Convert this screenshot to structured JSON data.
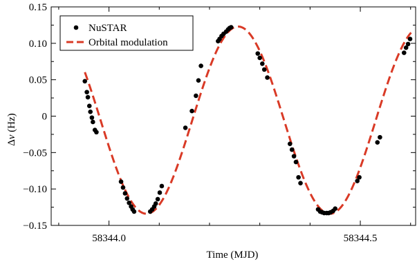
{
  "chart_data": {
    "type": "scatter",
    "title": "",
    "xlabel": "Time (MJD)",
    "ylabel_prefix": "Δ",
    "ylabel_symbol": "ν",
    "ylabel_suffix": " (Hz)",
    "xlim": [
      58343.885,
      58344.61
    ],
    "ylim": [
      -0.15,
      0.15
    ],
    "x_ticks": [
      58344.0,
      58344.5
    ],
    "x_tick_labels": [
      "58344.0",
      "58344.5"
    ],
    "x_minor_step": 0.1,
    "y_ticks": [
      -0.15,
      -0.1,
      -0.05,
      0,
      0.05,
      0.1,
      0.15
    ],
    "y_tick_labels": [
      "−0.15",
      "−0.10",
      "−0.05",
      "0",
      "0.05",
      "0.10",
      "0.15"
    ],
    "y_minor_step": 0.025,
    "grid": false,
    "legend_position": "top-left",
    "series": [
      {
        "name": "NuSTAR",
        "kind": "points",
        "color": "#000000",
        "points": [
          [
            58343.952,
            0.048
          ],
          [
            58343.956,
            0.033
          ],
          [
            58343.958,
            0.026
          ],
          [
            58343.961,
            0.014
          ],
          [
            58343.963,
            0.006
          ],
          [
            58343.966,
            -0.002
          ],
          [
            58343.968,
            -0.008
          ],
          [
            58343.972,
            -0.019
          ],
          [
            58343.975,
            -0.022
          ],
          [
            58344.024,
            -0.09
          ],
          [
            58344.028,
            -0.098
          ],
          [
            58344.032,
            -0.106
          ],
          [
            58344.036,
            -0.113
          ],
          [
            58344.04,
            -0.119
          ],
          [
            58344.044,
            -0.124
          ],
          [
            58344.047,
            -0.128
          ],
          [
            58344.05,
            -0.131
          ],
          [
            58344.082,
            -0.131
          ],
          [
            58344.086,
            -0.128
          ],
          [
            58344.09,
            -0.124
          ],
          [
            58344.093,
            -0.12
          ],
          [
            58344.097,
            -0.114
          ],
          [
            58344.101,
            -0.105
          ],
          [
            58344.105,
            -0.096
          ],
          [
            58344.152,
            -0.016
          ],
          [
            58344.165,
            0.007
          ],
          [
            58344.173,
            0.028
          ],
          [
            58344.178,
            0.049
          ],
          [
            58344.183,
            0.069
          ],
          [
            58344.217,
            0.103
          ],
          [
            58344.22,
            0.106
          ],
          [
            58344.224,
            0.11
          ],
          [
            58344.228,
            0.113
          ],
          [
            58344.233,
            0.116
          ],
          [
            58344.237,
            0.119
          ],
          [
            58344.24,
            0.121
          ],
          [
            58344.243,
            0.122
          ],
          [
            58344.296,
            0.086
          ],
          [
            58344.3,
            0.08
          ],
          [
            58344.305,
            0.072
          ],
          [
            58344.309,
            0.064
          ],
          [
            58344.315,
            0.053
          ],
          [
            58344.36,
            -0.038
          ],
          [
            58344.364,
            -0.046
          ],
          [
            58344.368,
            -0.055
          ],
          [
            58344.372,
            -0.063
          ],
          [
            58344.377,
            -0.084
          ],
          [
            58344.381,
            -0.092
          ],
          [
            58344.416,
            -0.128
          ],
          [
            58344.42,
            -0.131
          ],
          [
            58344.424,
            -0.132
          ],
          [
            58344.428,
            -0.133
          ],
          [
            58344.433,
            -0.133
          ],
          [
            58344.437,
            -0.133
          ],
          [
            58344.441,
            -0.132
          ],
          [
            58344.446,
            -0.13
          ],
          [
            58344.45,
            -0.127
          ],
          [
            58344.494,
            -0.089
          ],
          [
            58344.498,
            -0.084
          ],
          [
            58344.534,
            -0.036
          ],
          [
            58344.539,
            -0.029
          ],
          [
            58344.587,
            0.087
          ],
          [
            58344.591,
            0.094
          ],
          [
            58344.595,
            0.099
          ],
          [
            58344.599,
            0.106
          ]
        ]
      },
      {
        "name": "Orbital modulation",
        "kind": "model",
        "color": "#d93a26",
        "dash": "dashed",
        "amplitude": 0.1285,
        "offset": -0.0055,
        "peak_time": 58344.257,
        "period": 0.365,
        "x_range": [
          58343.952,
          58344.601
        ]
      }
    ]
  }
}
